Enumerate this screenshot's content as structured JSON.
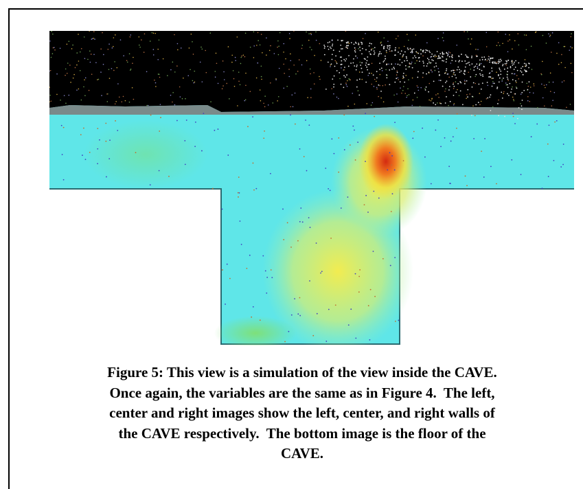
{
  "figure": {
    "caption_lines": [
      "Figure 5: This view is a simulation of the view inside the CAVE.",
      "Once again, the variables are the same as in Figure 4.  The left,",
      "center and right images show the left, center, and right walls of",
      "the CAVE respectively.  The bottom image is the floor of the",
      "CAVE."
    ]
  }
}
